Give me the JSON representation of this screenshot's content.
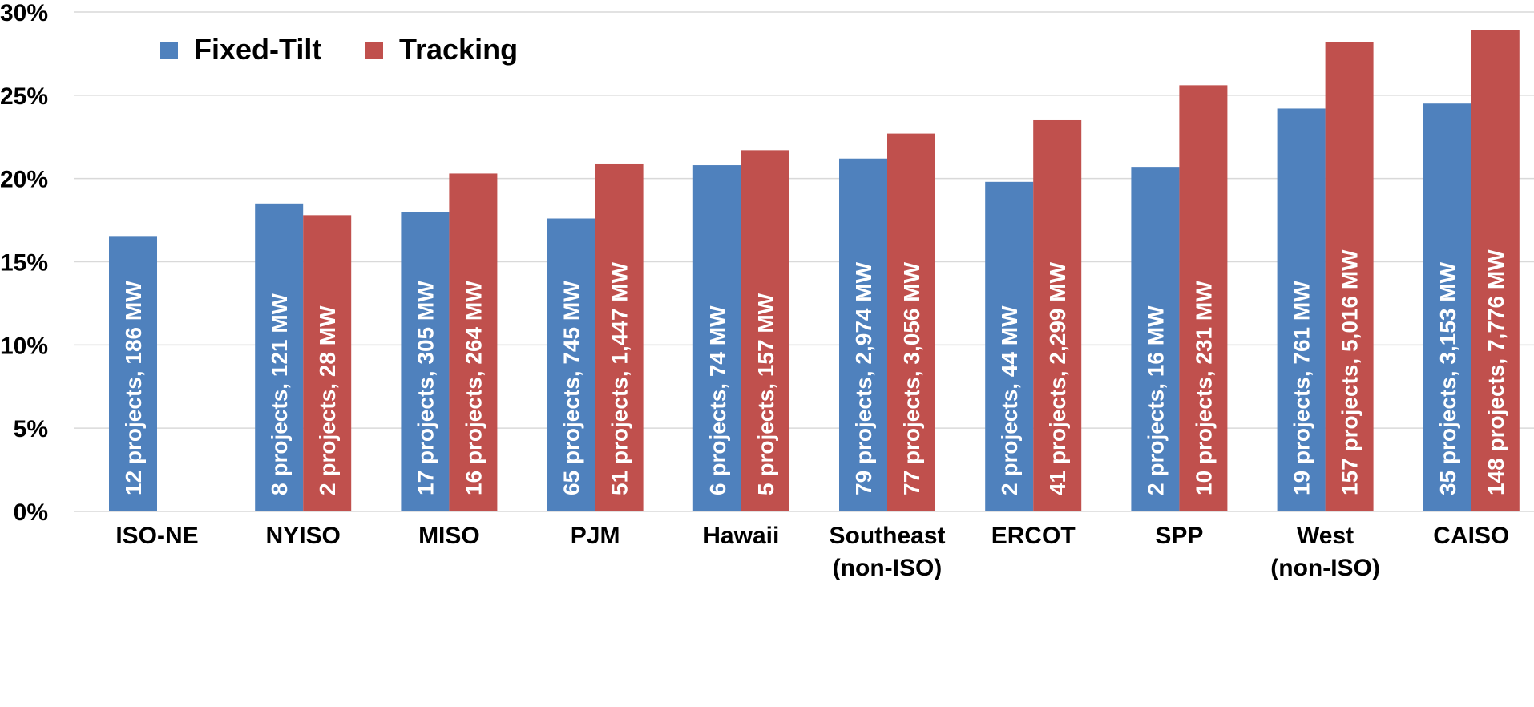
{
  "chart_data": {
    "type": "bar",
    "title": "",
    "xlabel": "",
    "ylabel": "",
    "ylim": [
      0,
      30
    ],
    "ytick_values": [
      0,
      5,
      10,
      15,
      20,
      25,
      30
    ],
    "ytick_labels": [
      "0%",
      "5%",
      "10%",
      "15%",
      "20%",
      "25%",
      "30%"
    ],
    "grid": true,
    "legend_position": "top-left",
    "categories": [
      [
        "ISO-NE"
      ],
      [
        "NYISO"
      ],
      [
        "MISO"
      ],
      [
        "PJM"
      ],
      [
        "Hawaii"
      ],
      [
        "Southeast",
        "(non-ISO)"
      ],
      [
        "ERCOT"
      ],
      [
        "SPP"
      ],
      [
        "West",
        "(non-ISO)"
      ],
      [
        "CAISO"
      ]
    ],
    "series": [
      {
        "name": "Fixed-Tilt",
        "color": "#4f81bd",
        "values": [
          16.5,
          18.5,
          18.0,
          17.6,
          20.8,
          21.2,
          19.8,
          20.7,
          24.2,
          24.5
        ],
        "labels": [
          "12 projects, 186 MW",
          "8 projects, 121 MW",
          "17 projects, 305 MW",
          "65 projects, 745 MW",
          "6 projects, 74 MW",
          "79 projects, 2,974 MW",
          "2 projects, 44 MW",
          "2 projects, 16 MW",
          "19 projects, 761 MW",
          "35 projects, 3,153 MW"
        ]
      },
      {
        "name": "Tracking",
        "color": "#c0504d",
        "values": [
          null,
          17.8,
          20.3,
          20.9,
          21.7,
          22.7,
          23.5,
          25.6,
          28.2,
          28.9
        ],
        "labels": [
          "",
          "2 projects, 28 MW",
          "16 projects, 264 MW",
          "51 projects, 1,447 MW",
          "5 projects, 157 MW",
          "77 projects, 3,056 MW",
          "41 projects, 2,299 MW",
          "10 projects, 231 MW",
          "157 projects, 5,016 MW",
          "148 projects, 7,776 MW"
        ]
      }
    ]
  }
}
